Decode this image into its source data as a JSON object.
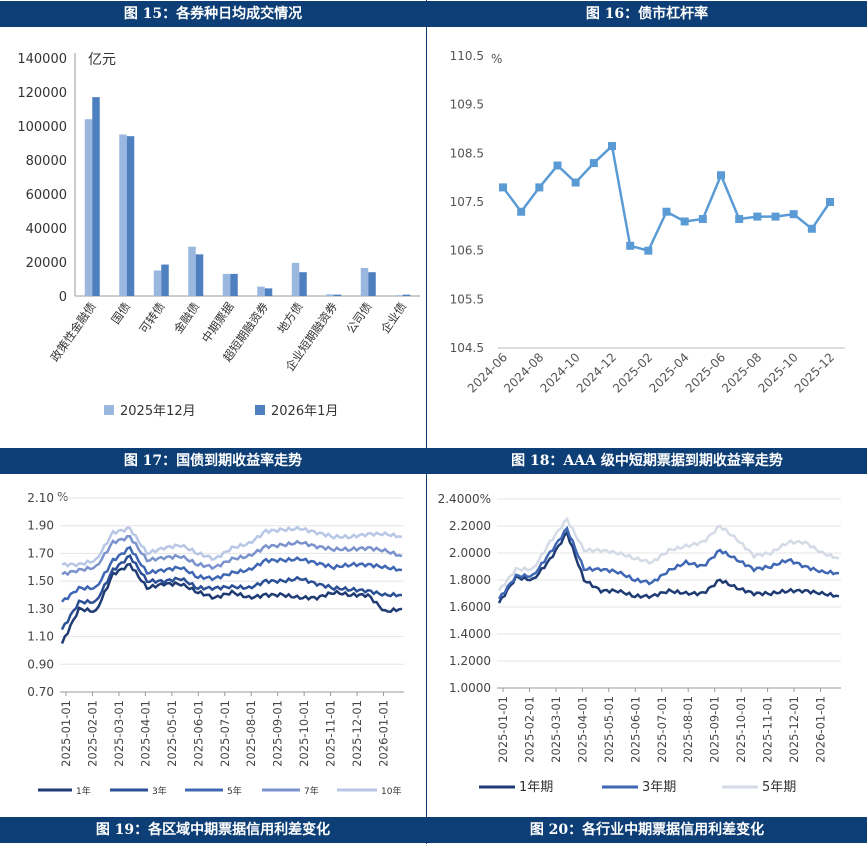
{
  "headers": {
    "fig15": "图 15：各券种日均成交情况",
    "fig16": "图 16：债市杠杆率",
    "fig17": "图 17：国债到期收益率走势",
    "fig18": "图 18：AAA 级中短期票据到期收益率走势",
    "fig19": "图 19：各区域中期票据信用利差变化",
    "fig20": "图 20：各行业中期票据信用利差变化"
  },
  "chart_data": [
    {
      "id": "fig15",
      "type": "bar",
      "unit": "亿元",
      "categories": [
        "政策性金融债",
        "国债",
        "可转债",
        "金融债",
        "中期票据",
        "超短期融资券",
        "地方债",
        "企业短期融资券",
        "公司债",
        "企业债"
      ],
      "series": [
        {
          "name": "2025年12月",
          "color": "#9ab7e0",
          "values": [
            104000,
            95000,
            15000,
            29000,
            13000,
            5500,
            19500,
            1000,
            16500,
            500
          ]
        },
        {
          "name": "2026年1月",
          "color": "#4e7fbf",
          "values": [
            117000,
            94000,
            18500,
            24500,
            13000,
            4500,
            14000,
            800,
            14000,
            800
          ]
        }
      ],
      "ylim": [
        0,
        140000
      ],
      "yticks": [
        0,
        20000,
        40000,
        60000,
        80000,
        100000,
        120000,
        140000
      ]
    },
    {
      "id": "fig16",
      "type": "line",
      "unit": "%",
      "color": "#5b9bd5",
      "xtick_labels": [
        "2024-06",
        "2024-08",
        "2024-10",
        "2024-12",
        "2025-02",
        "2025-04",
        "2025-06",
        "2025-08",
        "2025-10",
        "2025-12"
      ],
      "x": [
        "2024-06",
        "2024-07",
        "2024-08",
        "2024-09",
        "2024-10",
        "2024-11",
        "2024-12",
        "2025-01",
        "2025-02",
        "2025-03",
        "2025-04",
        "2025-05",
        "2025-06",
        "2025-07",
        "2025-08",
        "2025-09",
        "2025-10",
        "2025-11",
        "2025-12"
      ],
      "values": [
        107.8,
        107.3,
        107.8,
        108.25,
        107.9,
        108.3,
        108.65,
        106.6,
        106.5,
        107.3,
        107.1,
        107.15,
        108.05,
        107.15,
        107.2,
        107.2,
        107.25,
        106.95,
        107.5
      ],
      "ylim": [
        104.5,
        110.5
      ],
      "ytick_labels": [
        "104.5",
        "105.5",
        "106.5",
        "107.5",
        "108.5",
        "109.5",
        "110.5"
      ]
    },
    {
      "id": "fig19",
      "type": "line",
      "unit": "%",
      "xtick_labels": [
        "2025-01-01",
        "2025-02-01",
        "2025-03-01",
        "2025-04-01",
        "2025-05-01",
        "2025-06-01",
        "2025-07-01",
        "2025-08-01",
        "2025-09-01",
        "2025-10-01",
        "2025-11-01",
        "2025-12-01",
        "2026-01-01"
      ],
      "ylim": [
        0.7,
        2.1
      ],
      "ytick_labels": [
        "0.70",
        "0.90",
        "1.10",
        "1.30",
        "1.50",
        "1.70",
        "1.90",
        "2.10"
      ],
      "series": [
        {
          "name": "1年",
          "color": "#1f3b73",
          "values": [
            1.05,
            1.3,
            1.28,
            1.55,
            1.62,
            1.45,
            1.48,
            1.48,
            1.42,
            1.38,
            1.42,
            1.38,
            1.4,
            1.4,
            1.38,
            1.38,
            1.42,
            1.4,
            1.4,
            1.28,
            1.3
          ]
        },
        {
          "name": "3年",
          "color": "#2b4f95",
          "values": [
            1.15,
            1.35,
            1.35,
            1.58,
            1.68,
            1.5,
            1.5,
            1.52,
            1.45,
            1.45,
            1.46,
            1.45,
            1.5,
            1.5,
            1.52,
            1.48,
            1.45,
            1.44,
            1.43,
            1.4,
            1.4
          ]
        },
        {
          "name": "5年",
          "color": "#3f67b3",
          "values": [
            1.35,
            1.45,
            1.45,
            1.65,
            1.74,
            1.56,
            1.58,
            1.6,
            1.53,
            1.52,
            1.56,
            1.58,
            1.65,
            1.65,
            1.66,
            1.63,
            1.6,
            1.62,
            1.62,
            1.6,
            1.58
          ]
        },
        {
          "name": "7年",
          "color": "#7b93cd",
          "values": [
            1.55,
            1.58,
            1.6,
            1.78,
            1.82,
            1.65,
            1.67,
            1.68,
            1.62,
            1.6,
            1.66,
            1.68,
            1.75,
            1.76,
            1.78,
            1.75,
            1.73,
            1.73,
            1.74,
            1.72,
            1.68
          ]
        },
        {
          "name": "10年",
          "color": "#b8c7e6",
          "values": [
            1.62,
            1.62,
            1.65,
            1.85,
            1.88,
            1.7,
            1.74,
            1.76,
            1.7,
            1.66,
            1.74,
            1.77,
            1.86,
            1.87,
            1.88,
            1.85,
            1.82,
            1.82,
            1.84,
            1.84,
            1.82
          ]
        }
      ]
    },
    {
      "id": "fig20",
      "type": "line",
      "xtick_labels": [
        "2025-01-01",
        "2025-02-01",
        "2025-03-01",
        "2025-04-01",
        "2025-05-01",
        "2025-06-01",
        "2025-07-01",
        "2025-08-01",
        "2025-09-01",
        "2025-10-01",
        "2025-11-01",
        "2025-12-01",
        "2026-01-01"
      ],
      "ylim": [
        1.0,
        2.4
      ],
      "ytick_labels": [
        "1.0000",
        "1.2000",
        "1.4000",
        "1.6000",
        "1.8000",
        "2.0000",
        "2.2000",
        "2.4000%"
      ],
      "series": [
        {
          "name": "1年期",
          "color": "#1f3b73",
          "values": [
            1.63,
            1.82,
            1.8,
            1.95,
            2.15,
            1.8,
            1.72,
            1.72,
            1.68,
            1.68,
            1.72,
            1.7,
            1.7,
            1.8,
            1.74,
            1.7,
            1.7,
            1.72,
            1.72,
            1.7,
            1.68
          ]
        },
        {
          "name": "3年期",
          "color": "#3f67b3",
          "values": [
            1.66,
            1.83,
            1.83,
            2.0,
            2.18,
            1.88,
            1.88,
            1.86,
            1.8,
            1.78,
            1.87,
            1.93,
            1.9,
            2.02,
            1.95,
            1.88,
            1.9,
            1.95,
            1.9,
            1.86,
            1.85
          ]
        },
        {
          "name": "5年期",
          "color": "#d5dbe6",
          "values": [
            1.72,
            1.88,
            1.88,
            2.08,
            2.25,
            2.02,
            2.02,
            2.0,
            1.96,
            1.93,
            2.02,
            2.05,
            2.08,
            2.2,
            2.1,
            1.98,
            2.0,
            2.08,
            2.08,
            2.0,
            1.96
          ]
        }
      ]
    }
  ]
}
